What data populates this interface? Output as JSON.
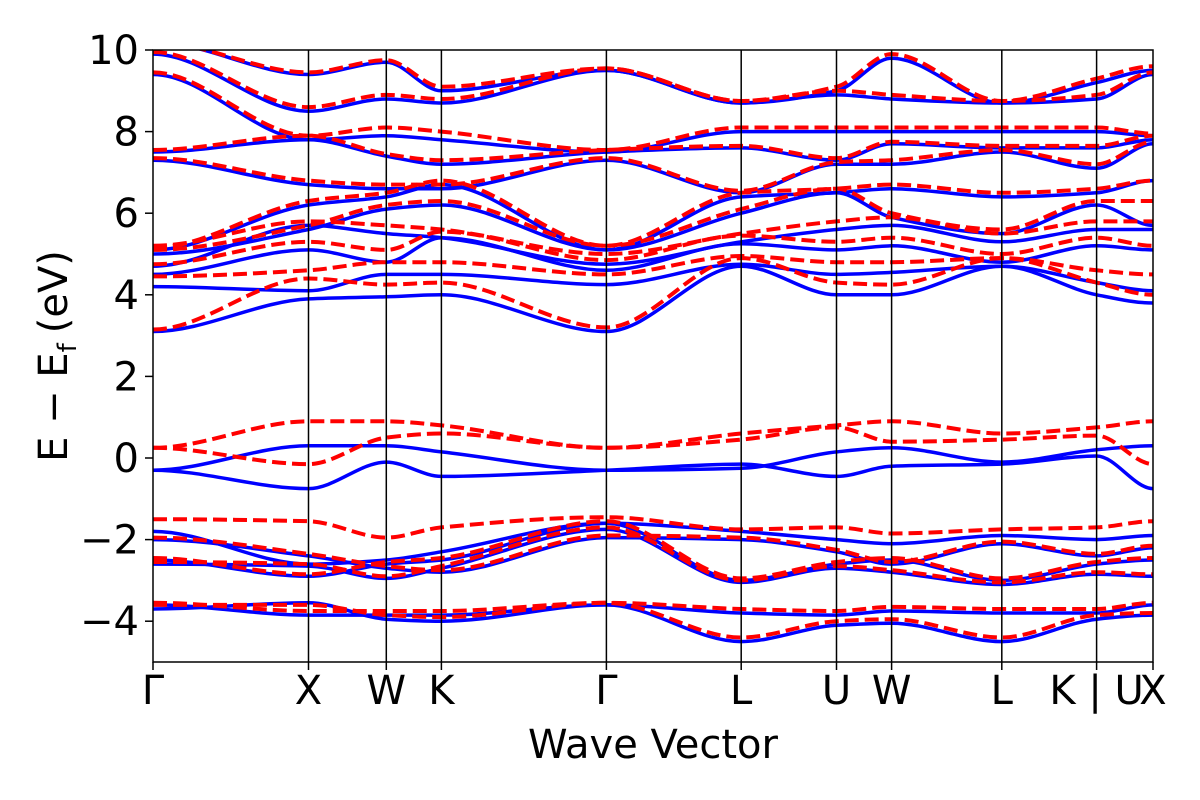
{
  "chart_data": {
    "type": "line",
    "title": "",
    "xlabel": "Wave Vector",
    "ylabel_main": "E − E",
    "ylabel_sub": "f",
    "ylabel_unit": "(eV)",
    "ylim": [
      -5,
      10
    ],
    "yticks": [
      -4,
      -2,
      0,
      2,
      4,
      6,
      8,
      10
    ],
    "ytick_labels": [
      "−4",
      "−2",
      "0",
      "2",
      "4",
      "6",
      "8",
      "10"
    ],
    "xlim": [
      0,
      1
    ],
    "kpoints": [
      {
        "label": "Γ",
        "x": 0.0
      },
      {
        "label": "X",
        "x": 0.1555
      },
      {
        "label": "W",
        "x": 0.2333
      },
      {
        "label": "K",
        "x": 0.2884
      },
      {
        "label": "Γ",
        "x": 0.4534
      },
      {
        "label": "L",
        "x": 0.5882
      },
      {
        "label": "U",
        "x": 0.6835
      },
      {
        "label": "W",
        "x": 0.7386
      },
      {
        "label": "L",
        "x": 0.8488
      },
      {
        "label": "K | U",
        "x": 0.9436
      },
      {
        "label": "X",
        "x": 1.0
      }
    ],
    "grid": false,
    "legend": "none",
    "series": [
      {
        "style": "solid",
        "color": "#0000ff",
        "bands": [
          [
            -3.7,
            -3.55,
            -3.95,
            -4.0,
            -3.6,
            -4.5,
            -4.1,
            -4.05,
            -4.5,
            -3.95,
            -3.85
          ],
          [
            -3.6,
            -3.85,
            -3.85,
            -3.85,
            -3.6,
            -3.8,
            -3.85,
            -3.75,
            -3.8,
            -3.8,
            -3.6
          ],
          [
            -2.6,
            -2.65,
            -2.95,
            -2.7,
            -1.75,
            -3.05,
            -2.7,
            -2.8,
            -3.1,
            -2.85,
            -2.9
          ],
          [
            -2.5,
            -2.9,
            -2.6,
            -2.5,
            -1.6,
            -3.0,
            -2.6,
            -2.5,
            -3.0,
            -2.6,
            -2.5
          ],
          [
            -2.0,
            -2.4,
            -2.7,
            -2.8,
            -1.95,
            -2.0,
            -2.3,
            -2.6,
            -2.1,
            -2.4,
            -2.2
          ],
          [
            -1.8,
            -2.6,
            -2.5,
            -2.3,
            -1.6,
            -1.8,
            -2.0,
            -2.1,
            -1.9,
            -2.0,
            -1.9
          ],
          [
            -0.3,
            -0.75,
            -0.1,
            -0.45,
            -0.3,
            -0.15,
            -0.45,
            -0.2,
            -0.15,
            0.05,
            -0.75
          ],
          [
            -0.3,
            0.3,
            0.3,
            0.15,
            -0.3,
            -0.25,
            0.15,
            0.25,
            -0.1,
            0.2,
            0.3
          ],
          [
            3.1,
            3.9,
            3.95,
            4.0,
            3.1,
            4.7,
            4.0,
            4.0,
            4.7,
            4.0,
            3.8
          ],
          [
            4.2,
            4.1,
            4.5,
            4.5,
            4.25,
            4.75,
            4.5,
            4.55,
            4.7,
            4.3,
            4.1
          ],
          [
            4.5,
            5.1,
            4.8,
            5.4,
            4.6,
            5.25,
            5.1,
            5.2,
            4.8,
            5.2,
            5.1
          ],
          [
            4.7,
            5.7,
            5.5,
            5.4,
            4.75,
            5.3,
            5.6,
            5.7,
            5.3,
            5.6,
            5.6
          ],
          [
            5.0,
            5.6,
            6.1,
            6.2,
            5.1,
            6.0,
            6.5,
            5.9,
            5.5,
            6.2,
            5.7
          ],
          [
            5.1,
            6.2,
            6.4,
            6.7,
            5.1,
            6.4,
            6.5,
            6.6,
            6.4,
            6.5,
            6.8
          ],
          [
            7.3,
            6.7,
            6.6,
            6.6,
            7.3,
            6.5,
            7.2,
            7.2,
            7.5,
            7.1,
            7.7
          ],
          [
            7.5,
            7.8,
            7.4,
            7.2,
            7.5,
            7.6,
            7.3,
            7.7,
            7.6,
            7.6,
            7.8
          ],
          [
            9.4,
            7.8,
            7.9,
            7.8,
            7.5,
            8.0,
            8.0,
            8.0,
            8.0,
            8.0,
            7.9
          ],
          [
            9.9,
            8.5,
            8.8,
            8.7,
            9.5,
            8.7,
            8.9,
            8.8,
            8.7,
            8.8,
            9.4
          ],
          [
            10.2,
            9.4,
            9.7,
            9.0,
            9.5,
            8.7,
            9.0,
            9.8,
            8.7,
            9.2,
            9.5
          ]
        ]
      },
      {
        "style": "dashed",
        "color": "#ff0000",
        "bands": [
          [
            -3.6,
            -3.6,
            -3.85,
            -3.9,
            -3.55,
            -4.4,
            -4.0,
            -3.95,
            -4.4,
            -3.85,
            -3.8
          ],
          [
            -3.55,
            -3.75,
            -3.75,
            -3.75,
            -3.55,
            -3.7,
            -3.75,
            -3.65,
            -3.7,
            -3.7,
            -3.55
          ],
          [
            -2.55,
            -2.6,
            -2.9,
            -2.65,
            -1.7,
            -3.0,
            -2.65,
            -2.75,
            -3.05,
            -2.8,
            -2.85
          ],
          [
            -2.45,
            -2.85,
            -2.55,
            -2.45,
            -1.55,
            -2.95,
            -2.55,
            -2.45,
            -2.95,
            -2.55,
            -2.45
          ],
          [
            -1.95,
            -2.35,
            -2.65,
            -2.75,
            -1.9,
            -1.95,
            -2.25,
            -2.55,
            -2.05,
            -2.35,
            -2.15
          ],
          [
            -1.5,
            -1.55,
            -1.95,
            -1.7,
            -1.45,
            -1.75,
            -1.7,
            -1.85,
            -1.75,
            -1.7,
            -1.55
          ],
          [
            0.25,
            -0.15,
            0.5,
            0.6,
            0.25,
            0.45,
            0.75,
            0.4,
            0.45,
            0.55,
            -0.15
          ],
          [
            0.25,
            0.9,
            0.9,
            0.8,
            0.25,
            0.6,
            0.8,
            0.9,
            0.6,
            0.75,
            0.9
          ],
          [
            3.15,
            4.4,
            4.25,
            4.3,
            3.2,
            4.9,
            4.3,
            4.25,
            4.9,
            4.3,
            4.0
          ],
          [
            4.45,
            4.6,
            4.8,
            4.8,
            4.5,
            4.95,
            4.8,
            4.8,
            4.9,
            4.6,
            4.5
          ],
          [
            4.75,
            5.3,
            5.1,
            5.55,
            4.85,
            5.45,
            5.3,
            5.4,
            5.0,
            5.4,
            5.2
          ],
          [
            5.2,
            5.8,
            5.7,
            5.6,
            5.0,
            5.5,
            5.8,
            5.9,
            5.5,
            5.8,
            5.8
          ],
          [
            5.1,
            5.7,
            6.2,
            6.3,
            5.2,
            6.1,
            6.6,
            6.0,
            5.6,
            6.3,
            6.3
          ],
          [
            5.15,
            6.3,
            6.5,
            6.8,
            5.2,
            6.5,
            6.6,
            6.7,
            6.5,
            6.6,
            6.8
          ],
          [
            7.35,
            6.8,
            6.7,
            6.7,
            7.35,
            6.55,
            7.25,
            7.3,
            7.55,
            7.2,
            7.75
          ],
          [
            7.55,
            7.9,
            7.45,
            7.3,
            7.55,
            7.65,
            7.35,
            7.75,
            7.65,
            7.65,
            7.9
          ],
          [
            9.45,
            7.9,
            8.1,
            8.0,
            7.55,
            8.1,
            8.1,
            8.1,
            8.1,
            8.1,
            7.95
          ],
          [
            9.95,
            8.6,
            8.9,
            8.8,
            9.55,
            8.75,
            9.0,
            8.9,
            8.75,
            8.9,
            9.45
          ],
          [
            10.2,
            9.45,
            9.75,
            9.1,
            9.55,
            8.75,
            9.1,
            9.9,
            8.75,
            9.3,
            9.6
          ]
        ]
      }
    ]
  }
}
